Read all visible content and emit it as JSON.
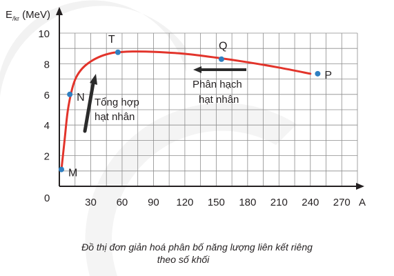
{
  "chart_data": {
    "type": "line",
    "ylabel_main": "E",
    "ylabel_sub": "/kr",
    "ylabel_unit": " (MeV)",
    "xlabel": "A",
    "origin_label": "0",
    "xlim": [
      0,
      285
    ],
    "ylim": [
      0,
      10
    ],
    "x_ticks": [
      30,
      60,
      90,
      120,
      150,
      180,
      210,
      240,
      270
    ],
    "y_ticks": [
      2,
      4,
      6,
      8,
      10
    ],
    "grid": true,
    "series": [
      {
        "x": [
          2,
          5,
          8,
          12,
          16,
          22,
          30,
          40,
          50,
          56,
          70,
          90,
          120,
          150,
          180,
          210,
          240
        ],
        "y": [
          1.1,
          3.0,
          4.9,
          6.3,
          7.1,
          7.7,
          8.15,
          8.5,
          8.7,
          8.75,
          8.8,
          8.78,
          8.65,
          8.4,
          8.1,
          7.75,
          7.35
        ]
      }
    ],
    "points": [
      {
        "label": "M",
        "x": 2,
        "y": 1.1
      },
      {
        "label": "N",
        "x": 10,
        "y": 6.0
      },
      {
        "label": "T",
        "x": 56,
        "y": 8.75
      },
      {
        "label": "Q",
        "x": 155,
        "y": 8.3
      },
      {
        "label": "P",
        "x": 247,
        "y": 7.35
      }
    ],
    "annotations": {
      "fusion": [
        "Tổng hợp",
        "hạt nhân"
      ],
      "fission": [
        "Phân hạch",
        "hạt nhân"
      ]
    },
    "caption": [
      "Đồ thị đơn giản hoá phân bố năng lượng liên kết riêng",
      "theo số khối"
    ],
    "colors": {
      "curve": "#e2342b",
      "points": "#2f7fc1",
      "axis": "#231f20",
      "grid": "#8c8c8c",
      "watermark": "#f2f2f2"
    }
  }
}
